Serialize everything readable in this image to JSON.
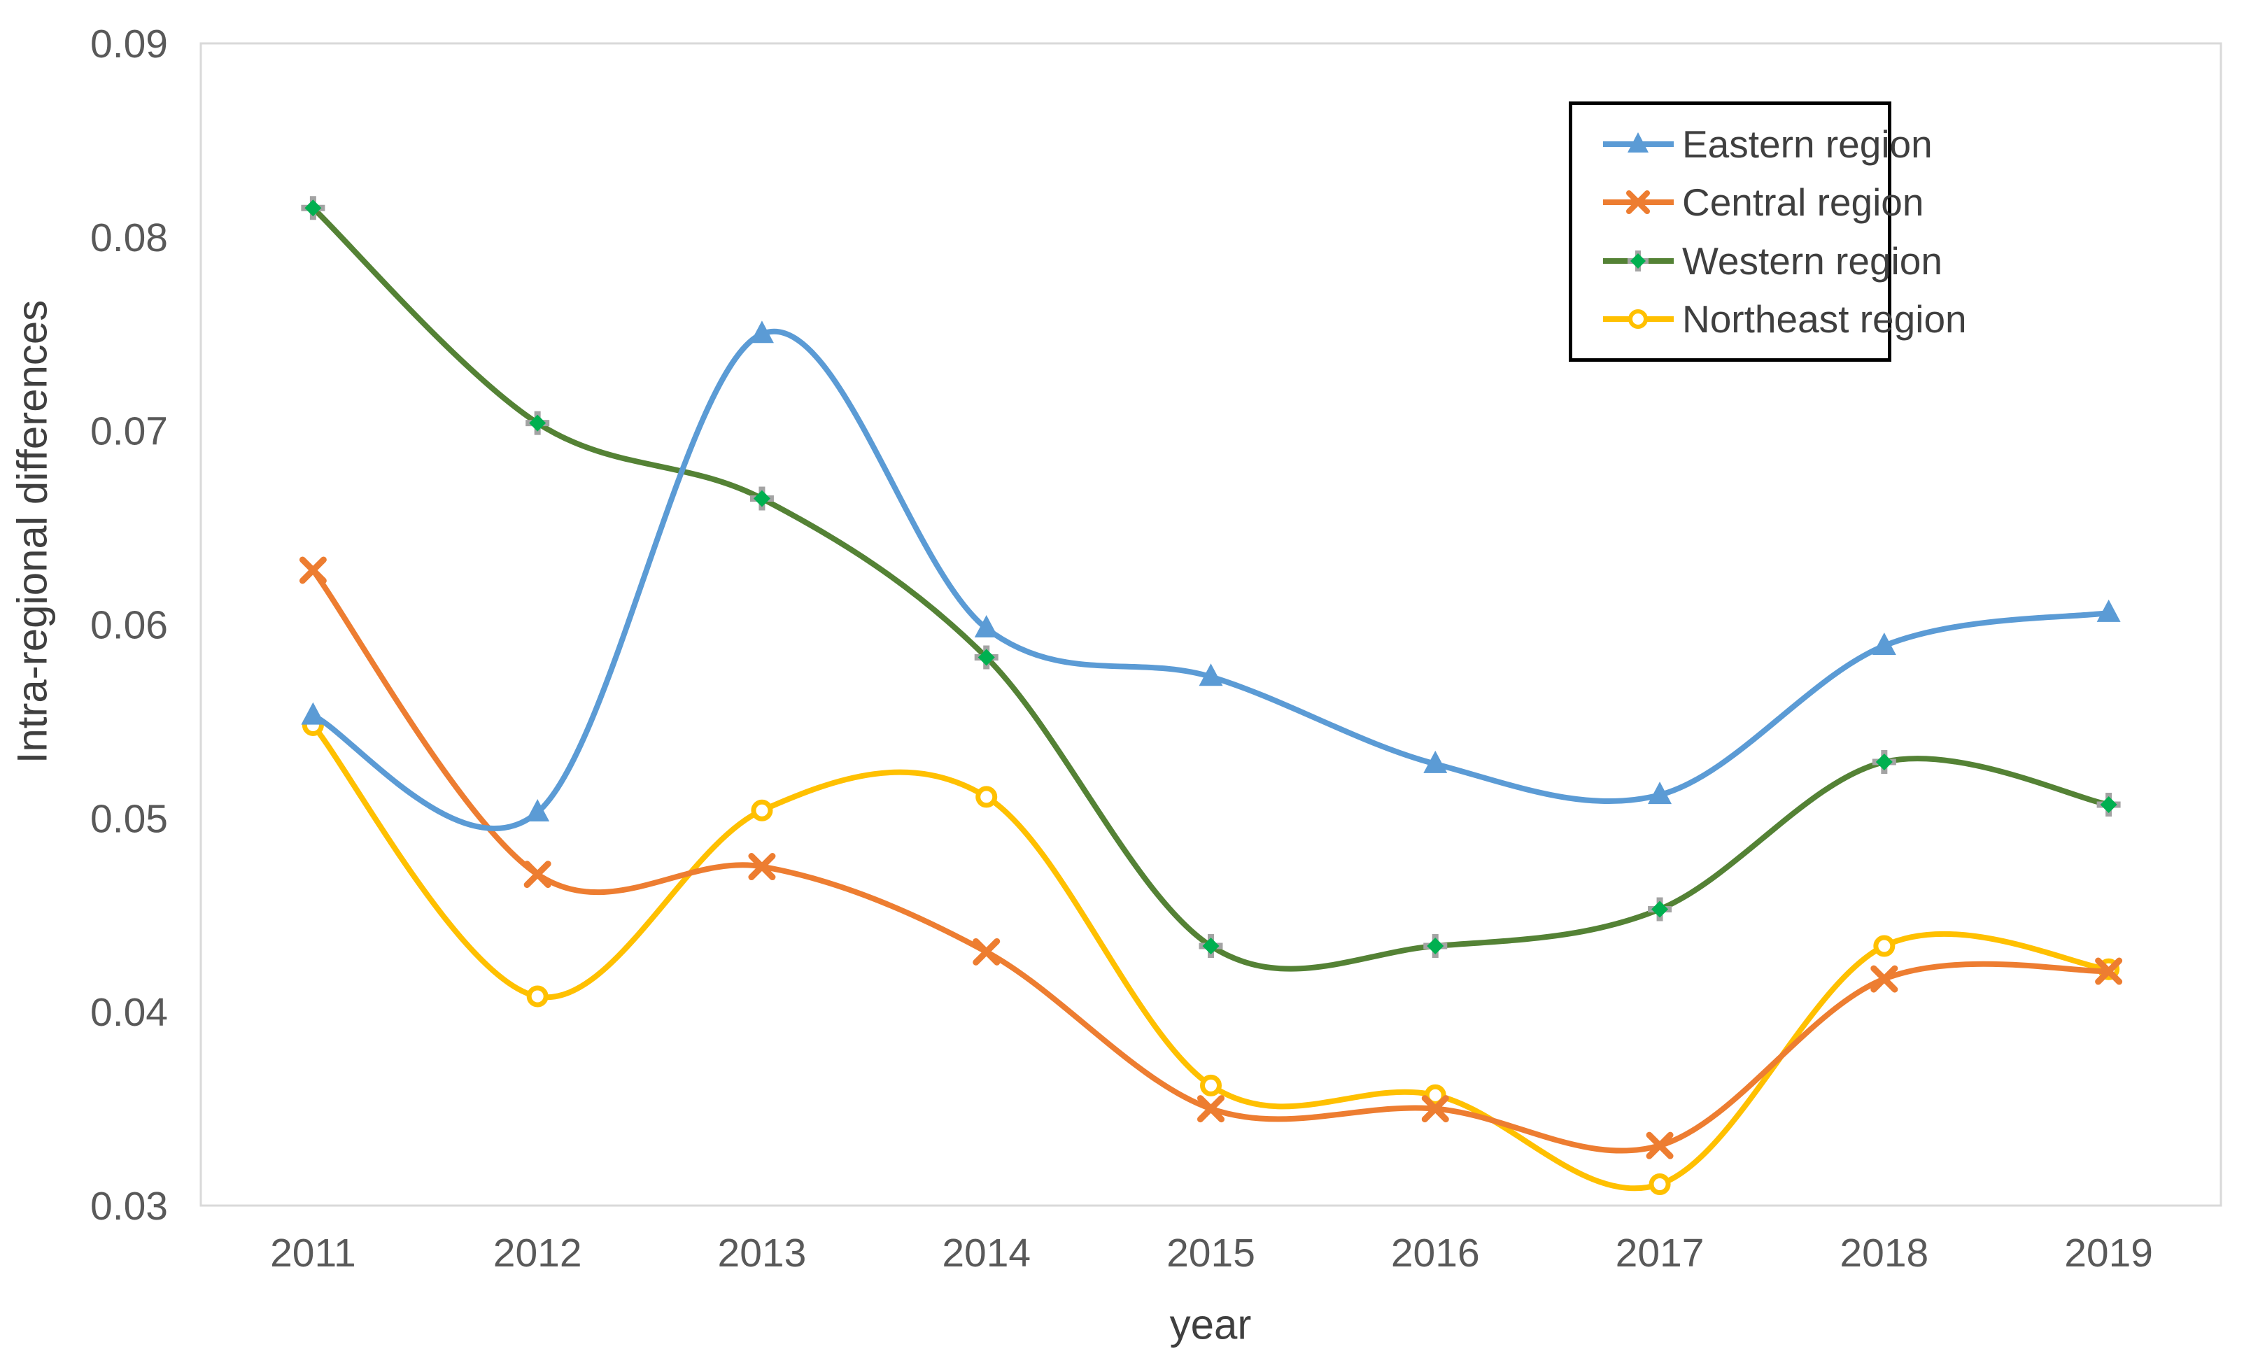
{
  "chart_data": {
    "type": "line",
    "title": "",
    "xlabel": "year",
    "ylabel": "Intra-regional differences",
    "x": [
      "2011",
      "2012",
      "2013",
      "2014",
      "2015",
      "2016",
      "2017",
      "2018",
      "2019"
    ],
    "ylim": [
      0.03,
      0.09
    ],
    "y_ticks": [
      "0.09",
      "0.08",
      "0.07",
      "0.06",
      "0.05",
      "0.04",
      "0.03"
    ],
    "grid": false,
    "legend_position": "top-right",
    "line_smoothing": true,
    "series": [
      {
        "name": "Eastern region",
        "color": "#5B9BD5",
        "marker": "triangle",
        "values": [
          0.0553,
          0.0503,
          0.075,
          0.0598,
          0.0573,
          0.0528,
          0.0512,
          0.0589,
          0.0606
        ]
      },
      {
        "name": "Central region",
        "color": "#ED7D31",
        "marker": "x",
        "values": [
          0.0628,
          0.0471,
          0.0475,
          0.0431,
          0.035,
          0.035,
          0.0331,
          0.0417,
          0.0421
        ]
      },
      {
        "name": "Western region",
        "color": "#548235",
        "marker": "diamond-plus",
        "marker_fill": "#00B050",
        "marker_cross": "#A3A3A3",
        "values": [
          0.0815,
          0.0704,
          0.0665,
          0.0583,
          0.0434,
          0.0434,
          0.0453,
          0.0529,
          0.0507
        ]
      },
      {
        "name": "Northeast region",
        "color": "#FFC000",
        "marker": "circle",
        "values": [
          0.0548,
          0.0408,
          0.0504,
          0.0511,
          0.0362,
          0.0357,
          0.0311,
          0.0434,
          0.0422
        ]
      }
    ],
    "axis_color": "#D9D9D9",
    "tick_label_color": "#595959"
  }
}
